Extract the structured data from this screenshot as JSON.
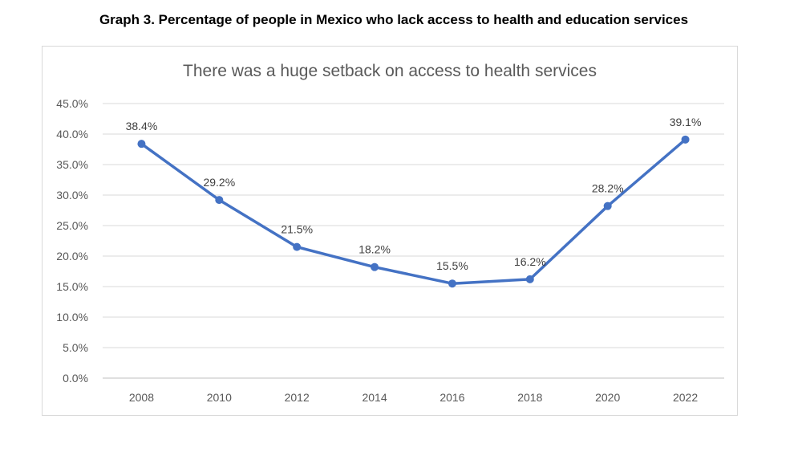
{
  "figure_title": "Graph 3. Percentage of people in Mexico who lack access to health and education services",
  "chart_data": {
    "type": "line",
    "title": "There was a huge setback on access to health services",
    "xlabel": "",
    "ylabel": "",
    "categories": [
      "2008",
      "2010",
      "2012",
      "2014",
      "2016",
      "2018",
      "2020",
      "2022"
    ],
    "values": [
      38.4,
      29.2,
      21.5,
      18.2,
      15.5,
      16.2,
      28.2,
      39.1
    ],
    "data_labels": [
      "38.4%",
      "29.2%",
      "21.5%",
      "18.2%",
      "15.5%",
      "16.2%",
      "28.2%",
      "39.1%"
    ],
    "y_ticks": [
      "0.0%",
      "5.0%",
      "10.0%",
      "15.0%",
      "20.0%",
      "25.0%",
      "30.0%",
      "35.0%",
      "40.0%",
      "45.0%"
    ],
    "ylim": [
      0,
      45
    ],
    "grid": true,
    "legend": "none",
    "color": "#4472C4"
  }
}
